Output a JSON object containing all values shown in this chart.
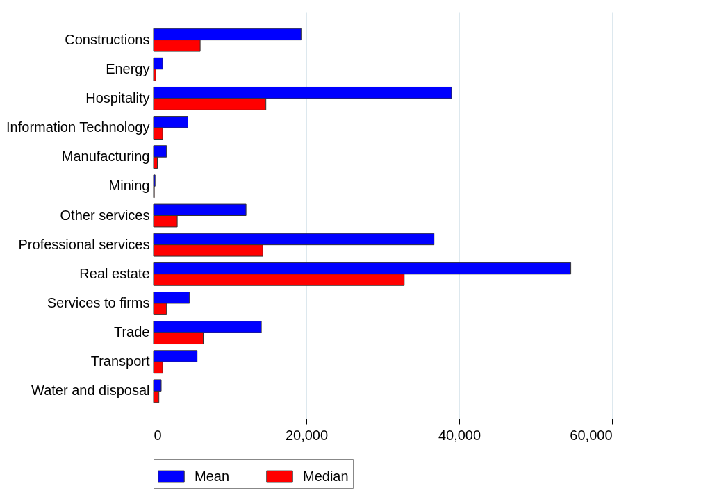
{
  "chart_data": {
    "type": "bar",
    "orientation": "horizontal",
    "categories": [
      "Constructions",
      "Energy",
      "Hospitality",
      "Information Technology",
      "Manufacturing",
      "Mining",
      "Other services",
      "Professional services",
      "Real estate",
      "Services to firms",
      "Trade",
      "Transport",
      "Water and disposal"
    ],
    "series": [
      {
        "name": "Mean",
        "color": "#0000ff",
        "values": [
          19300,
          1200,
          39000,
          4500,
          1700,
          200,
          12100,
          36700,
          54600,
          4700,
          14100,
          5700,
          1000
        ]
      },
      {
        "name": "Median",
        "color": "#ff0000",
        "values": [
          6100,
          300,
          14700,
          1200,
          500,
          100,
          3100,
          14300,
          32800,
          1700,
          6500,
          1200,
          700
        ]
      }
    ],
    "xlim": [
      0,
      60000
    ],
    "xticks": [
      0,
      {
        "value": 20000,
        "label": "20,000"
      },
      {
        "value": 40000,
        "label": "40,000"
      },
      {
        "value": 60000,
        "label": "60,000"
      }
    ],
    "grid": "x",
    "legend": "bottom"
  }
}
